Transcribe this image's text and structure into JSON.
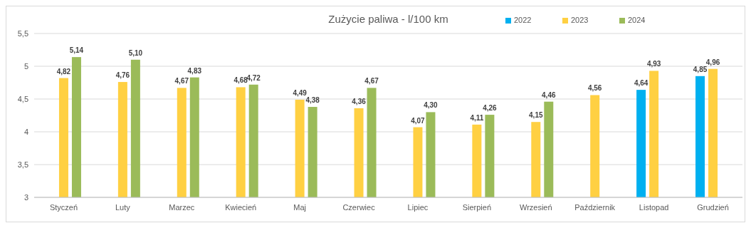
{
  "chart_data": {
    "type": "bar",
    "title": "Zużycie paliwa - l/100 km",
    "categories": [
      "Styczeń",
      "Luty",
      "Marzec",
      "Kwiecień",
      "Maj",
      "Czerwiec",
      "Lipiec",
      "Sierpień",
      "Wrzesień",
      "Październik",
      "Listopad",
      "Grudzień"
    ],
    "series": [
      {
        "name": "2022",
        "color": "#00b0f0",
        "values": [
          null,
          null,
          null,
          null,
          null,
          null,
          null,
          null,
          null,
          null,
          4.64,
          4.85
        ],
        "value_labels": [
          null,
          null,
          null,
          null,
          null,
          null,
          null,
          null,
          null,
          null,
          "4,64",
          "4,85"
        ]
      },
      {
        "name": "2023",
        "color": "#ffd042",
        "values": [
          4.82,
          4.76,
          4.67,
          4.68,
          4.49,
          4.36,
          4.07,
          4.11,
          4.15,
          4.56,
          4.93,
          4.96
        ],
        "value_labels": [
          "4,82",
          "4,76",
          "4,67",
          "4,68",
          "4,49",
          "4,36",
          "4,07",
          "4,11",
          "4,15",
          "4,56",
          "4,93",
          "4,96"
        ]
      },
      {
        "name": "2024",
        "color": "#9bbb59",
        "values": [
          5.14,
          5.1,
          4.83,
          4.72,
          4.38,
          4.67,
          4.3,
          4.26,
          4.46,
          null,
          null,
          null
        ],
        "value_labels": [
          "5,14",
          "5,10",
          "4,83",
          "4,72",
          "4,38",
          "4,67",
          "4,30",
          "4,26",
          "4,46",
          null,
          null,
          null
        ]
      }
    ],
    "ylim": [
      3,
      5.5
    ],
    "yticks": [
      3,
      {
        "value": 3.5,
        "label": "3,5"
      },
      4,
      {
        "value": 4.5,
        "label": "4,5"
      },
      5,
      {
        "value": 5.5,
        "label": "5,5"
      }
    ],
    "grid": "y",
    "legend": "top right"
  }
}
